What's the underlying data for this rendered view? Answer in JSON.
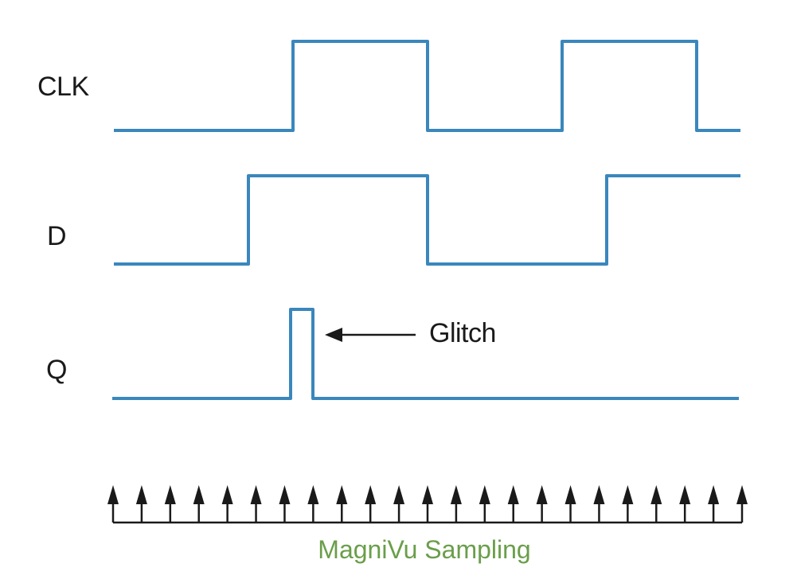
{
  "signals": [
    {
      "label": "CLK"
    },
    {
      "label": "D"
    },
    {
      "label": "Q"
    }
  ],
  "annotation": {
    "label": "Glitch"
  },
  "sampling": {
    "label": "MagniVu Sampling",
    "arrow_count": 23
  },
  "colors": {
    "waveform": "#3a87bd",
    "sampling_label": "#6a9e4a",
    "arrows": "#1a1a1a"
  }
}
